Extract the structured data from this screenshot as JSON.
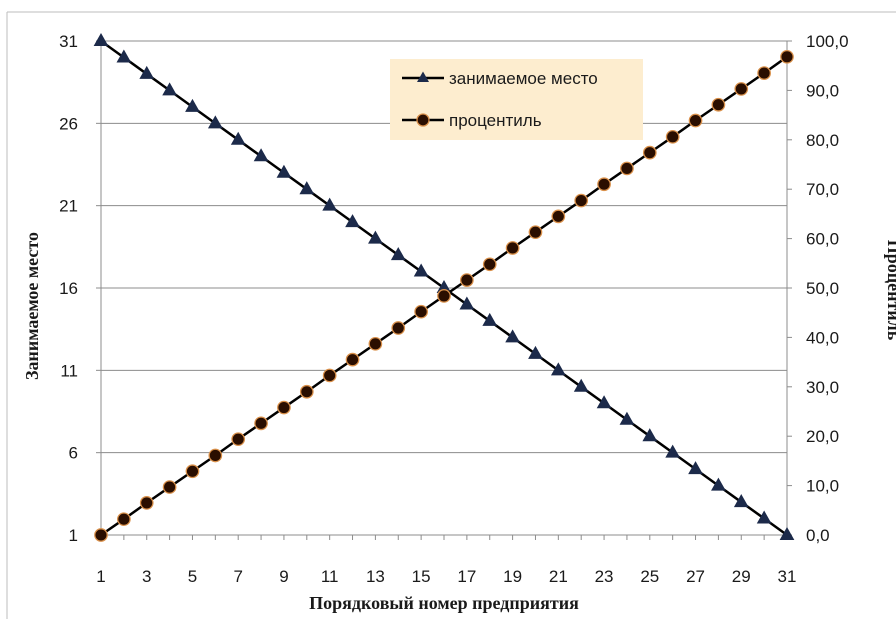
{
  "chart_data": {
    "type": "line",
    "xlabel": "Порядковый номер предприятия",
    "ylabel_left": "Занимаемое место",
    "ylabel_right": "Процентиль",
    "x_ticks": [
      "1",
      "3",
      "5",
      "7",
      "9",
      "11",
      "13",
      "15",
      "17",
      "19",
      "21",
      "23",
      "25",
      "27",
      "29",
      "31"
    ],
    "y_left_ticks": [
      "1",
      "6",
      "11",
      "16",
      "21",
      "26",
      "31"
    ],
    "y_right_ticks": [
      "0,0",
      "10,0",
      "20,0",
      "30,0",
      "40,0",
      "50,0",
      "60,0",
      "70,0",
      "80,0",
      "90,0",
      "100,0"
    ],
    "x_range": [
      1,
      31
    ],
    "y_left_range": [
      1,
      31
    ],
    "y_right_range": [
      0,
      100
    ],
    "grid": "horizontal",
    "legend_position": "top-center",
    "x": [
      1,
      2,
      3,
      4,
      5,
      6,
      7,
      8,
      9,
      10,
      11,
      12,
      13,
      14,
      15,
      16,
      17,
      18,
      19,
      20,
      21,
      22,
      23,
      24,
      25,
      26,
      27,
      28,
      29,
      30,
      31
    ],
    "series": [
      {
        "name": "занимаемое место",
        "axis": "left",
        "marker": "triangle",
        "color": "#1c2a4a",
        "values": [
          31,
          30,
          29,
          28,
          27,
          26,
          25,
          24,
          23,
          22,
          21,
          20,
          19,
          18,
          17,
          16,
          15,
          14,
          13,
          12,
          11,
          10,
          9,
          8,
          7,
          6,
          5,
          4,
          3,
          2,
          1
        ]
      },
      {
        "name": "процентиль",
        "axis": "right",
        "marker": "circle",
        "color": "#000000",
        "marker_fill": "#2a0e00",
        "marker_edge": "#d9904a",
        "values": [
          0.0,
          3.2,
          6.5,
          9.7,
          12.9,
          16.1,
          19.4,
          22.6,
          25.8,
          29.0,
          32.3,
          35.5,
          38.7,
          41.9,
          45.2,
          48.4,
          51.6,
          54.8,
          58.1,
          61.3,
          64.5,
          67.7,
          71.0,
          74.2,
          77.4,
          80.6,
          83.9,
          87.1,
          90.3,
          93.5,
          96.8
        ]
      }
    ]
  },
  "colors": {
    "legend_background": "#fdedcf",
    "gridline": "#8c8c8c",
    "axis_line": "#8c8c8c"
  }
}
